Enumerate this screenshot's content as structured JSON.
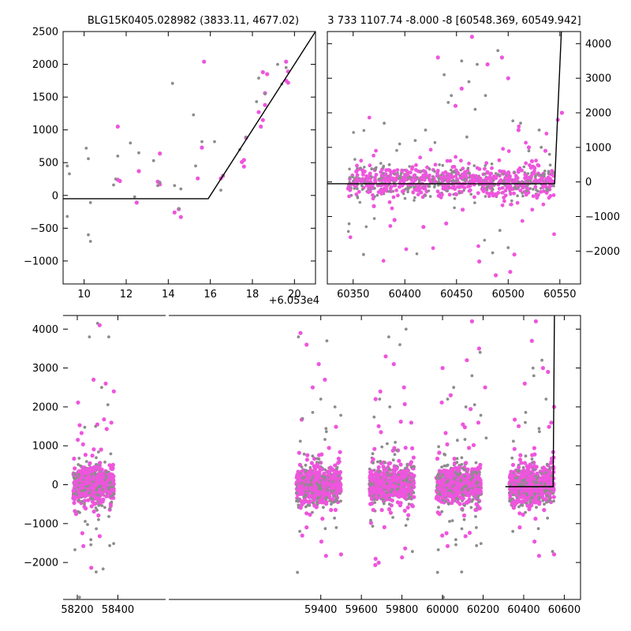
{
  "colors": {
    "gray": "#8c8c8c",
    "magenta": "#ee55dd",
    "model": "#000000",
    "background": "#ffffff"
  },
  "chart_data": [
    {
      "type": "scatter",
      "title": "BLG15K0405.028982 (3833.11, 4677.02)",
      "xlim": [
        9,
        21
      ],
      "ylim": [
        -1350,
        2500
      ],
      "x_offset_label": "+6.053e4",
      "xticks": [
        10,
        12,
        14,
        16,
        18,
        20
      ],
      "yticks": [
        -1000,
        -500,
        0,
        500,
        1000,
        1500,
        2000,
        2500
      ],
      "yaxis_side": "left",
      "model": {
        "x": [
          9,
          15.9,
          21
        ],
        "y": [
          -50,
          -50,
          2500
        ]
      },
      "series": [
        {
          "color": "magenta",
          "x": [
            11.6,
            11.6,
            11.7,
            12.6,
            12.5,
            13.6,
            13.5,
            13.6,
            14.5,
            14.3,
            14.6,
            15.4,
            15.6,
            15.7,
            16.6,
            16.5,
            17.6,
            17.5,
            17.6,
            17.7,
            18.3,
            18.4,
            18.5,
            18.6,
            18.6,
            18.5,
            18.7,
            19.6,
            19.7,
            19.6,
            19.7
          ],
          "y": [
            1050,
            240,
            220,
            370,
            -110,
            640,
            210,
            170,
            -210,
            -260,
            -330,
            260,
            730,
            2040,
            300,
            260,
            440,
            510,
            540,
            880,
            1270,
            1050,
            1150,
            1380,
            1560,
            1880,
            1850,
            2040,
            1890,
            1750,
            1720
          ]
        },
        {
          "color": "gray",
          "x": [
            9.2,
            9.3,
            9.2,
            10.1,
            10.2,
            10.3,
            10.2,
            10.3,
            11.5,
            11.6,
            11.4,
            12.2,
            12.6,
            12.4,
            13.3,
            13.6,
            13.5,
            14.2,
            14.3,
            14.6,
            14.5,
            15.2,
            15.3,
            15.6,
            16.2,
            16.5,
            16.6,
            17.4,
            17.7,
            18.2,
            18.3,
            18.6,
            19.2,
            19.4,
            19.6
          ],
          "y": [
            450,
            330,
            -320,
            720,
            560,
            -110,
            -600,
            -700,
            250,
            600,
            160,
            800,
            650,
            -20,
            530,
            200,
            150,
            1710,
            150,
            100,
            -200,
            1230,
            450,
            820,
            820,
            80,
            300,
            700,
            890,
            1430,
            1790,
            1550,
            2000,
            1700,
            1950
          ]
        }
      ]
    },
    {
      "type": "scatter",
      "title": "3 733 1107.74 -8.000 -8 [60548.369, 60549.942]",
      "xlim": [
        60325,
        60570
      ],
      "ylim": [
        -2950,
        4350
      ],
      "xticks": [
        60350,
        60400,
        60450,
        60500,
        60550
      ],
      "yticks": [
        -2000,
        -1000,
        0,
        1000,
        2000,
        3000,
        4000
      ],
      "yaxis_side": "right",
      "model": {
        "x": [
          60325,
          60545,
          60551.5
        ],
        "y": [
          -50,
          -50,
          4400
        ]
      },
      "series": [
        {
          "color": "gray",
          "note_scatter": "dense cloud",
          "x": [
            60360,
            60380,
            60395,
            60420,
            60438,
            60445,
            60460,
            60470,
            60490,
            60512,
            60520,
            60532,
            60455,
            60462,
            60468,
            60478,
            60485,
            60492,
            60500,
            60530,
            60540,
            60385,
            60410,
            60442
          ],
          "y": [
            -2100,
            1700,
            1100,
            1500,
            3100,
            2500,
            1300,
            3400,
            3800,
            1700,
            900,
            1000,
            3500,
            2900,
            2100,
            2500,
            -2050,
            -1400,
            -1900,
            1500,
            800,
            500,
            1200,
            2300
          ]
        },
        {
          "color": "magenta",
          "note_scatter": "dense cloud",
          "x": [
            60432,
            60449,
            60465,
            60480,
            60494,
            60510,
            60520,
            60536,
            60548,
            60552,
            60440,
            60456,
            60472,
            60488,
            60502,
            60418,
            60390,
            60370,
            60455,
            60500,
            60523,
            60506
          ],
          "y": [
            3600,
            2200,
            4200,
            3400,
            3600,
            1500,
            1000,
            900,
            1800,
            2000,
            -1200,
            -800,
            -2300,
            -2700,
            -2600,
            -1300,
            -1100,
            -700,
            2700,
            3000,
            600,
            -2100
          ]
        }
      ]
    },
    {
      "type": "scatter",
      "xlim": [
        58130,
        60680
      ],
      "ylim": [
        -2950,
        4350
      ],
      "xticks": [
        58200,
        58400,
        59400,
        59600,
        59800,
        60000,
        60200,
        60400,
        60600
      ],
      "yticks": [
        -2000,
        -1000,
        0,
        1000,
        2000,
        3000,
        4000
      ],
      "yaxis_side": "left",
      "model": {
        "x": [
          60310,
          60545,
          60551.5
        ],
        "y": [
          -50,
          -50,
          4400
        ]
      },
      "series": [
        {
          "color": "gray",
          "x": [
            58260,
            58290,
            58300,
            58320,
            58355,
            59290,
            59310,
            59360,
            59400,
            59430,
            59470,
            59690,
            59735,
            59740,
            59790,
            59820,
            60025,
            60055,
            60115,
            60145,
            60185,
            60215,
            60408,
            60446,
            60450,
            60490,
            60510
          ],
          "y": [
            3800,
            1500,
            4150,
            2500,
            3800,
            3800,
            1700,
            2500,
            2200,
            3700,
            2000,
            2200,
            3800,
            2000,
            3600,
            4000,
            2200,
            2500,
            2000,
            2800,
            3400,
            1200,
            1600,
            3000,
            2800,
            3200,
            2200
          ]
        },
        {
          "color": "magenta",
          "x": [
            58280,
            58310,
            58340,
            58380,
            59300,
            59330,
            59360,
            59390,
            59420,
            59670,
            59720,
            59760,
            59810,
            60000,
            60040,
            60120,
            60145,
            60180,
            60210,
            60405,
            60440,
            60460,
            60495,
            60520,
            60550
          ],
          "y": [
            2700,
            4100,
            2600,
            2400,
            3900,
            3600,
            2500,
            3100,
            2700,
            2200,
            3300,
            3100,
            2500,
            3000,
            2300,
            3200,
            4200,
            3500,
            2500,
            2600,
            3700,
            4200,
            3000,
            2900,
            2000
          ]
        }
      ],
      "seasons": [
        {
          "center": 58280,
          "halfwidth": 100
        },
        {
          "center": 59390,
          "halfwidth": 110
        },
        {
          "center": 59750,
          "halfwidth": 110
        },
        {
          "center": 60080,
          "halfwidth": 110
        },
        {
          "center": 60440,
          "halfwidth": 110
        }
      ]
    }
  ]
}
